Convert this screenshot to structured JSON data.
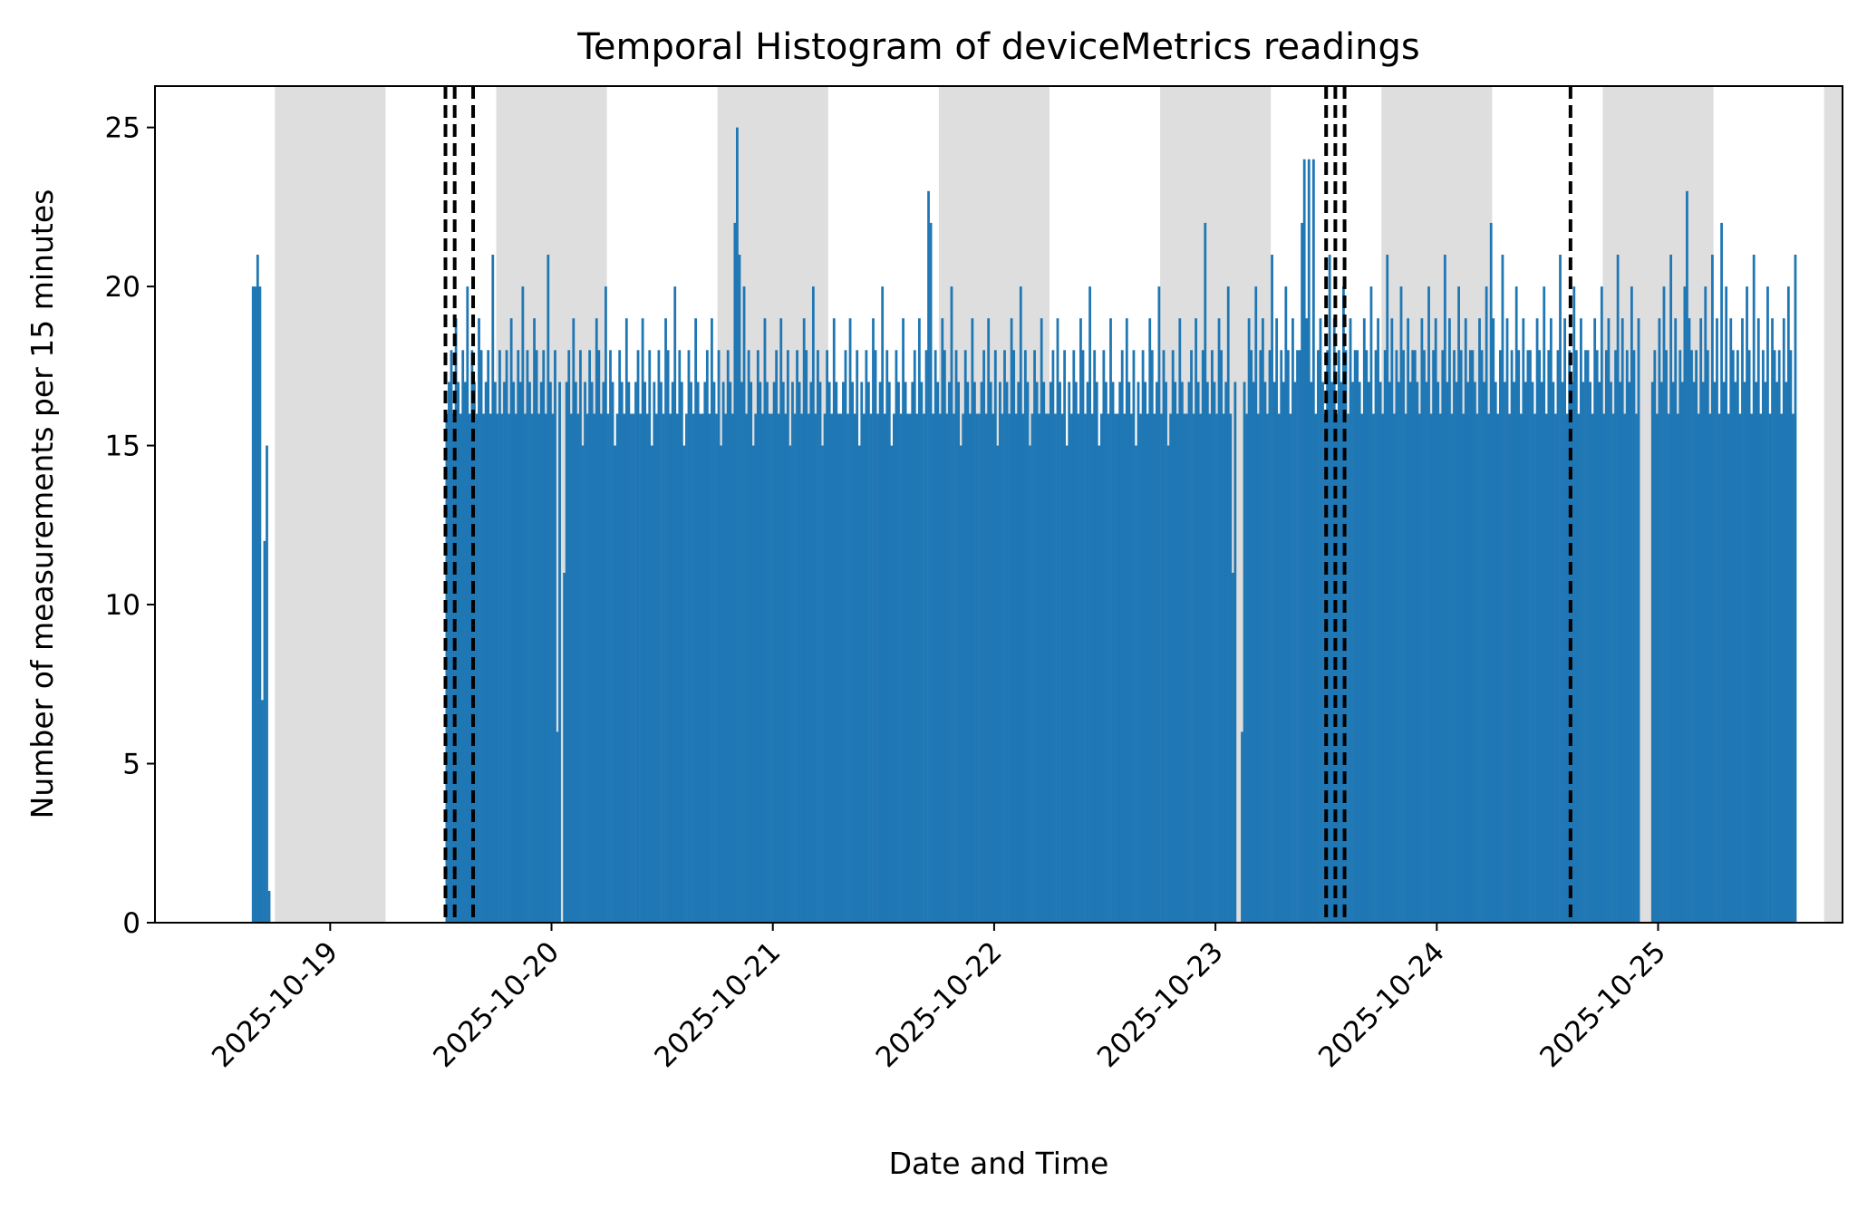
{
  "chart_data": {
    "type": "bar",
    "title": "Temporal Histogram of deviceMetrics readings",
    "xlabel": "Date and Time",
    "ylabel": "Number of measurements per 15 minutes",
    "ylim": [
      0,
      26.3
    ],
    "yticks": [
      0,
      5,
      10,
      15,
      20,
      25
    ],
    "xlim": [
      "2025-10-18T05:00",
      "2025-10-25T20:00"
    ],
    "xticks": [
      "2025-10-19",
      "2025-10-20",
      "2025-10-21",
      "2025-10-22",
      "2025-10-23",
      "2025-10-24",
      "2025-10-25"
    ],
    "bin_minutes": 15,
    "grid": false,
    "colors": {
      "bar": "#1f77b4",
      "night_band": "#dedede",
      "event_line": "#000000"
    },
    "night_bands": [
      {
        "start": "2025-10-18T18:00",
        "end": "2025-10-19T06:00"
      },
      {
        "start": "2025-10-19T18:00",
        "end": "2025-10-20T06:00"
      },
      {
        "start": "2025-10-20T18:00",
        "end": "2025-10-21T06:00"
      },
      {
        "start": "2025-10-21T18:00",
        "end": "2025-10-22T06:00"
      },
      {
        "start": "2025-10-22T18:00",
        "end": "2025-10-23T06:00"
      },
      {
        "start": "2025-10-23T18:00",
        "end": "2025-10-24T06:00"
      },
      {
        "start": "2025-10-24T18:00",
        "end": "2025-10-25T06:00"
      },
      {
        "start": "2025-10-25T18:00",
        "end": "2025-10-25T20:00"
      }
    ],
    "event_lines": [
      "2025-10-19T12:30",
      "2025-10-19T13:30",
      "2025-10-19T15:30",
      "2025-10-23T12:00",
      "2025-10-23T13:00",
      "2025-10-23T14:00",
      "2025-10-24T14:30"
    ],
    "bars": [
      {
        "x": "2025-10-18T15:30",
        "y": 20
      },
      {
        "x": "2025-10-18T15:45",
        "y": 20
      },
      {
        "x": "2025-10-18T16:00",
        "y": 21
      },
      {
        "x": "2025-10-18T16:15",
        "y": 20
      },
      {
        "x": "2025-10-18T16:30",
        "y": 7
      },
      {
        "x": "2025-10-18T16:45",
        "y": 12
      },
      {
        "x": "2025-10-18T17:00",
        "y": 15
      },
      {
        "x": "2025-10-18T17:15",
        "y": 1
      }
    ],
    "segments": [
      {
        "start": "2025-10-19T12:30",
        "end": "2025-10-20T00:45",
        "base_pattern": [
          16,
          17,
          18,
          16,
          19,
          17,
          16,
          18,
          17,
          20,
          16,
          18,
          17,
          16,
          19,
          18,
          16,
          17,
          18,
          16,
          21,
          17,
          16,
          18
        ],
        "overrides": [
          {
            "x": "2025-10-20T00:30",
            "y": 6
          }
        ]
      },
      {
        "start": "2025-10-20T01:15",
        "end": "2025-10-23T02:00",
        "base_pattern": [
          16,
          17,
          18,
          16,
          19,
          17,
          16,
          18,
          15,
          17,
          16,
          18,
          17,
          16,
          19,
          18,
          16,
          17,
          20,
          16,
          18,
          17,
          15,
          16,
          18,
          17,
          16,
          19,
          17,
          16
        ],
        "overrides": [
          {
            "x": "2025-10-20T01:15",
            "y": 11
          },
          {
            "x": "2025-10-20T19:45",
            "y": 22
          },
          {
            "x": "2025-10-20T20:00",
            "y": 25
          },
          {
            "x": "2025-10-20T20:15",
            "y": 21
          },
          {
            "x": "2025-10-21T16:45",
            "y": 23
          },
          {
            "x": "2025-10-21T17:00",
            "y": 22
          },
          {
            "x": "2025-10-22T22:45",
            "y": 22
          },
          {
            "x": "2025-10-23T01:45",
            "y": 11
          }
        ]
      },
      {
        "start": "2025-10-23T02:45",
        "end": "2025-10-24T21:45",
        "base_pattern": [
          18,
          17,
          16,
          19,
          18,
          17,
          20,
          16,
          18,
          19,
          17,
          16,
          18,
          21,
          17,
          19,
          16,
          18,
          17,
          20,
          18,
          16,
          19,
          17,
          18
        ],
        "overrides": [
          {
            "x": "2025-10-23T02:45",
            "y": 6
          },
          {
            "x": "2025-10-23T09:15",
            "y": 22
          },
          {
            "x": "2025-10-23T09:30",
            "y": 24
          },
          {
            "x": "2025-10-23T10:00",
            "y": 24
          },
          {
            "x": "2025-10-23T10:30",
            "y": 24
          },
          {
            "x": "2025-10-24T05:45",
            "y": 22
          }
        ]
      },
      {
        "start": "2025-10-24T23:15",
        "end": "2025-10-25T14:45",
        "base_pattern": [
          17,
          18,
          16,
          19,
          17,
          20,
          18,
          16,
          21,
          17,
          19,
          16,
          18,
          17,
          20,
          16,
          19,
          18
        ],
        "overrides": [
          {
            "x": "2025-10-25T03:00",
            "y": 23
          },
          {
            "x": "2025-10-25T06:45",
            "y": 22
          }
        ]
      }
    ]
  }
}
